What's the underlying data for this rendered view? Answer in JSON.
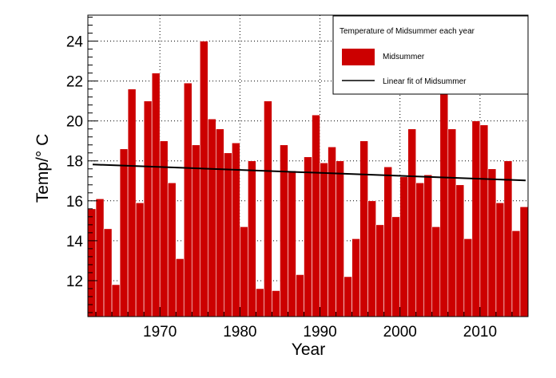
{
  "chart_data": {
    "type": "bar",
    "xlabel": "Year",
    "ylabel": "Temp/° C",
    "xlim": [
      1961,
      2016
    ],
    "ylim": [
      10.2,
      25.3
    ],
    "x_ticks": [
      1970,
      1980,
      1990,
      2000,
      2010
    ],
    "y_ticks": [
      12,
      14,
      16,
      18,
      20,
      22,
      24
    ],
    "grid": true,
    "legend_position": "top-right",
    "legend": {
      "title": "Temperature of Midsummer each year",
      "entries": [
        "Midsummer",
        "Linear fit of Midsummer"
      ]
    },
    "colors": {
      "bars": "#cc0000",
      "fit_line": "#000000",
      "grid": "#000000"
    },
    "series": [
      {
        "name": "Midsummer",
        "type": "bar",
        "x": [
          1961,
          1962,
          1963,
          1964,
          1965,
          1966,
          1967,
          1968,
          1969,
          1970,
          1971,
          1972,
          1973,
          1974,
          1975,
          1976,
          1977,
          1978,
          1979,
          1980,
          1981,
          1982,
          1983,
          1984,
          1985,
          1986,
          1987,
          1988,
          1989,
          1990,
          1991,
          1992,
          1993,
          1994,
          1995,
          1996,
          1997,
          1998,
          1999,
          2000,
          2001,
          2002,
          2003,
          2004,
          2005,
          2006,
          2007,
          2008,
          2009,
          2010,
          2011,
          2012,
          2013,
          2014,
          2015
        ],
        "values": [
          15.6,
          16.1,
          14.6,
          11.8,
          18.6,
          21.6,
          15.9,
          21.0,
          22.4,
          19.0,
          16.9,
          13.1,
          21.9,
          18.8,
          24.0,
          20.1,
          19.6,
          18.4,
          18.9,
          14.7,
          18.0,
          11.6,
          21.0,
          11.5,
          18.8,
          17.5,
          12.3,
          18.2,
          20.3,
          17.9,
          18.7,
          18.0,
          12.2,
          14.1,
          19.0,
          16.0,
          14.8,
          17.7,
          15.2,
          17.2,
          19.6,
          16.9,
          17.3,
          14.7,
          21.4,
          19.6,
          16.8,
          14.1,
          20.0,
          19.8,
          17.6,
          15.9,
          18.0,
          14.5,
          15.7
        ]
      },
      {
        "name": "Linear fit of Midsummer",
        "type": "line",
        "x": [
          1961,
          2016
        ],
        "values": [
          17.82,
          17.02
        ]
      }
    ]
  }
}
